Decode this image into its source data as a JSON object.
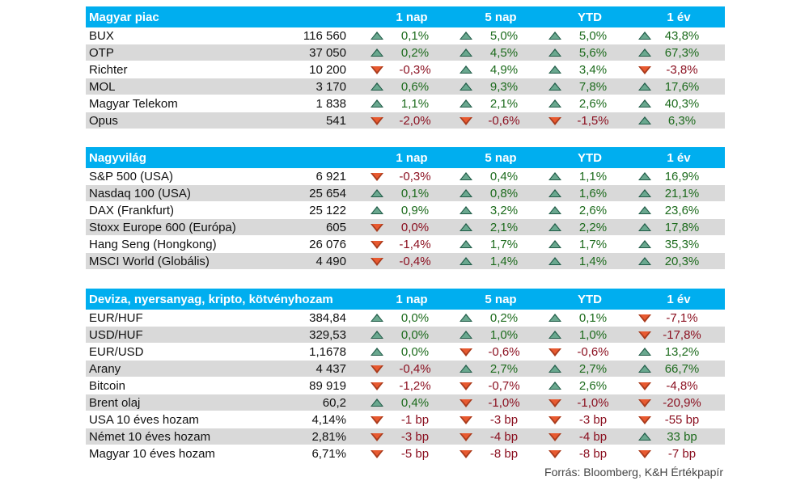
{
  "colors": {
    "header_bg": "#00aeef",
    "positive": "#1d6b1d",
    "negative": "#8b1020",
    "up_arrow": "#6aa88f",
    "down_arrow": "#e85a30",
    "alt_row": "#d9d9d9"
  },
  "sections": [
    {
      "title": "Magyar piac",
      "headers": [
        "1 nap",
        "5 nap",
        "YTD",
        "1 év"
      ],
      "rows": [
        {
          "name": "BUX",
          "value": "116 560",
          "changes": [
            {
              "v": "0,1%",
              "d": "up"
            },
            {
              "v": "5,0%",
              "d": "up"
            },
            {
              "v": "5,0%",
              "d": "up"
            },
            {
              "v": "43,8%",
              "d": "up"
            }
          ]
        },
        {
          "name": "OTP",
          "value": "37 050",
          "changes": [
            {
              "v": "0,2%",
              "d": "up"
            },
            {
              "v": "4,5%",
              "d": "up"
            },
            {
              "v": "5,6%",
              "d": "up"
            },
            {
              "v": "67,3%",
              "d": "up"
            }
          ]
        },
        {
          "name": "Richter",
          "value": "10 200",
          "changes": [
            {
              "v": "-0,3%",
              "d": "down"
            },
            {
              "v": "4,9%",
              "d": "up"
            },
            {
              "v": "3,4%",
              "d": "up"
            },
            {
              "v": "-3,8%",
              "d": "down"
            }
          ]
        },
        {
          "name": "MOL",
          "value": "3 170",
          "changes": [
            {
              "v": "0,6%",
              "d": "up"
            },
            {
              "v": "9,3%",
              "d": "up"
            },
            {
              "v": "7,8%",
              "d": "up"
            },
            {
              "v": "17,6%",
              "d": "up"
            }
          ]
        },
        {
          "name": "Magyar Telekom",
          "value": "1 838",
          "changes": [
            {
              "v": "1,1%",
              "d": "up"
            },
            {
              "v": "2,1%",
              "d": "up"
            },
            {
              "v": "2,6%",
              "d": "up"
            },
            {
              "v": "40,3%",
              "d": "up"
            }
          ]
        },
        {
          "name": "Opus",
          "value": "541",
          "changes": [
            {
              "v": "-2,0%",
              "d": "down"
            },
            {
              "v": "-0,6%",
              "d": "down"
            },
            {
              "v": "-1,5%",
              "d": "down"
            },
            {
              "v": "6,3%",
              "d": "up"
            }
          ]
        }
      ]
    },
    {
      "title": "Nagyvilág",
      "headers": [
        "1 nap",
        "5 nap",
        "YTD",
        "1 év"
      ],
      "rows": [
        {
          "name": "S&P 500 (USA)",
          "value": "6 921",
          "changes": [
            {
              "v": "-0,3%",
              "d": "down"
            },
            {
              "v": "0,4%",
              "d": "up"
            },
            {
              "v": "1,1%",
              "d": "up"
            },
            {
              "v": "16,9%",
              "d": "up"
            }
          ]
        },
        {
          "name": "Nasdaq 100 (USA)",
          "value": "25 654",
          "changes": [
            {
              "v": "0,1%",
              "d": "up"
            },
            {
              "v": "0,8%",
              "d": "up"
            },
            {
              "v": "1,6%",
              "d": "up"
            },
            {
              "v": "21,1%",
              "d": "up"
            }
          ]
        },
        {
          "name": "DAX (Frankfurt)",
          "value": "25 122",
          "changes": [
            {
              "v": "0,9%",
              "d": "up"
            },
            {
              "v": "3,2%",
              "d": "up"
            },
            {
              "v": "2,6%",
              "d": "up"
            },
            {
              "v": "23,6%",
              "d": "up"
            }
          ]
        },
        {
          "name": "Stoxx Europe 600 (Európa)",
          "value": "605",
          "changes": [
            {
              "v": "0,0%",
              "d": "down"
            },
            {
              "v": "2,1%",
              "d": "up"
            },
            {
              "v": "2,2%",
              "d": "up"
            },
            {
              "v": "17,8%",
              "d": "up"
            }
          ]
        },
        {
          "name": "Hang Seng (Hongkong)",
          "value": "26 076",
          "changes": [
            {
              "v": "-1,4%",
              "d": "down"
            },
            {
              "v": "1,7%",
              "d": "up"
            },
            {
              "v": "1,7%",
              "d": "up"
            },
            {
              "v": "35,3%",
              "d": "up"
            }
          ]
        },
        {
          "name": "MSCI World (Globális)",
          "value": "4 490",
          "changes": [
            {
              "v": "-0,4%",
              "d": "down"
            },
            {
              "v": "1,4%",
              "d": "up"
            },
            {
              "v": "1,4%",
              "d": "up"
            },
            {
              "v": "20,3%",
              "d": "up"
            }
          ]
        }
      ]
    },
    {
      "title": "Deviza, nyersanyag, kripto, kötvényhozam",
      "headers": [
        "1 nap",
        "5 nap",
        "YTD",
        "1 év"
      ],
      "rows": [
        {
          "name": "EUR/HUF",
          "value": "384,84",
          "changes": [
            {
              "v": "0,0%",
              "d": "up"
            },
            {
              "v": "0,2%",
              "d": "up"
            },
            {
              "v": "0,1%",
              "d": "up"
            },
            {
              "v": "-7,1%",
              "d": "down"
            }
          ]
        },
        {
          "name": "USD/HUF",
          "value": "329,53",
          "changes": [
            {
              "v": "0,0%",
              "d": "up"
            },
            {
              "v": "1,0%",
              "d": "up"
            },
            {
              "v": "1,0%",
              "d": "up"
            },
            {
              "v": "-17,8%",
              "d": "down"
            }
          ]
        },
        {
          "name": "EUR/USD",
          "value": "1,1678",
          "changes": [
            {
              "v": "0,0%",
              "d": "up"
            },
            {
              "v": "-0,6%",
              "d": "down"
            },
            {
              "v": "-0,6%",
              "d": "down"
            },
            {
              "v": "13,2%",
              "d": "up"
            }
          ]
        },
        {
          "name": "Arany",
          "value": "4 437",
          "changes": [
            {
              "v": "-0,4%",
              "d": "down"
            },
            {
              "v": "2,7%",
              "d": "up"
            },
            {
              "v": "2,7%",
              "d": "up"
            },
            {
              "v": "66,7%",
              "d": "up"
            }
          ]
        },
        {
          "name": "Bitcoin",
          "value": "89 919",
          "changes": [
            {
              "v": "-1,2%",
              "d": "down"
            },
            {
              "v": "-0,7%",
              "d": "down"
            },
            {
              "v": "2,6%",
              "d": "up"
            },
            {
              "v": "-4,8%",
              "d": "down"
            }
          ]
        },
        {
          "name": "Brent olaj",
          "value": "60,2",
          "changes": [
            {
              "v": "0,4%",
              "d": "up"
            },
            {
              "v": "-1,0%",
              "d": "down"
            },
            {
              "v": "-1,0%",
              "d": "down"
            },
            {
              "v": "-20,9%",
              "d": "down"
            }
          ]
        },
        {
          "name": "USA 10 éves hozam",
          "value": "4,14%",
          "changes": [
            {
              "v": "-1 bp",
              "d": "down"
            },
            {
              "v": "-3 bp",
              "d": "down"
            },
            {
              "v": "-3 bp",
              "d": "down"
            },
            {
              "v": "-55 bp",
              "d": "down"
            }
          ]
        },
        {
          "name": "Német 10 éves hozam",
          "value": "2,81%",
          "changes": [
            {
              "v": "-3 bp",
              "d": "down"
            },
            {
              "v": "-4 bp",
              "d": "down"
            },
            {
              "v": "-4 bp",
              "d": "down"
            },
            {
              "v": "33 bp",
              "d": "up"
            }
          ]
        },
        {
          "name": "Magyar 10 éves hozam",
          "value": "6,71%",
          "changes": [
            {
              "v": "-5 bp",
              "d": "down"
            },
            {
              "v": "-8 bp",
              "d": "down"
            },
            {
              "v": "-8 bp",
              "d": "down"
            },
            {
              "v": "-7 bp",
              "d": "down"
            }
          ]
        }
      ]
    }
  ],
  "footer": "Forrás: Bloomberg, K&H Értékpapír"
}
